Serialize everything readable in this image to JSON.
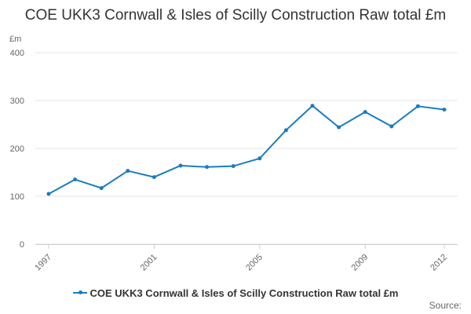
{
  "chart_data": {
    "type": "line",
    "title": "COE UKK3 Cornwall & Isles of Scilly Construction Raw total £m",
    "ylabel": "£m",
    "xlabel": "",
    "ylim": [
      0,
      400
    ],
    "yticks": [
      "0",
      "100",
      "200",
      "300",
      "400"
    ],
    "xticks": [
      "1997",
      "2001",
      "2005",
      "2009",
      "2012"
    ],
    "x": [
      1997,
      1998,
      1999,
      2000,
      2001,
      2002,
      2003,
      2004,
      2005,
      2006,
      2007,
      2008,
      2009,
      2010,
      2011,
      2012
    ],
    "series": [
      {
        "name": "COE UKK3 Cornwall & Isles of Scilly Construction Raw total £m",
        "color": "#1a7dc0",
        "values": [
          105,
          135,
          117,
          153,
          140,
          164,
          161,
          163,
          179,
          238,
          289,
          244,
          276,
          246,
          288,
          281
        ]
      }
    ],
    "grid": true,
    "legend_position": "bottom"
  },
  "credit": "Source:"
}
